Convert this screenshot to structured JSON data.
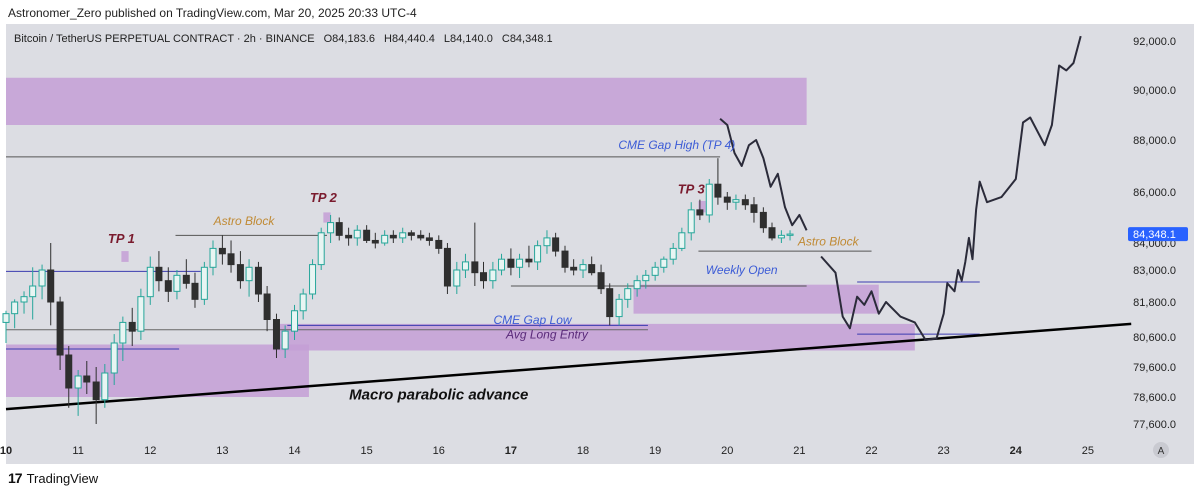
{
  "header": {
    "published": "Astronomer_Zero published on TradingView.com, Mar 20, 2025 20:33 UTC-4"
  },
  "footer": {
    "logo_mark": "17",
    "brand": "TradingView"
  },
  "colors": {
    "background": "#dcdde3",
    "zone": "#c49fd6",
    "up": "#26a69a",
    "down": "#2f2f2f",
    "label_blue": "#3b5bd6",
    "label_orange": "#c08a34",
    "tp_label": "#7a1b2e",
    "price_tag": "#2962ff"
  },
  "chart_data": {
    "type": "candlestick",
    "symbol_line": "Bitcoin / TetherUS PERPETUAL CONTRACT · 2h · BINANCE",
    "ohlc": {
      "open": "O84,183.6",
      "high": "H84,440.4",
      "low": "L84,140.0",
      "close": "C84,348.1"
    },
    "last_price": "84,348.1",
    "y_ticks": [
      "92,000.0",
      "90,000.0",
      "88,000.0",
      "86,000.0",
      "84,000.0",
      "83,000.0",
      "81,800.0",
      "80,600.0",
      "79,600.0",
      "78,600.0",
      "77,600.0"
    ],
    "x_ticks": [
      "10",
      "11",
      "12",
      "13",
      "14",
      "15",
      "16",
      "17",
      "18",
      "19",
      "20",
      "21",
      "22",
      "23",
      "24",
      "25"
    ],
    "corner_button": "A",
    "ylim": [
      77000,
      92500
    ],
    "xlim": [
      10,
      25.5
    ],
    "zones": [
      {
        "x0": 10.0,
        "x1": 21.1,
        "y0": 88600,
        "y1": 90500
      },
      {
        "x0": 10.0,
        "x1": 14.2,
        "y0": 78600,
        "y1": 80350
      },
      {
        "x0": 13.7,
        "x1": 22.6,
        "y0": 80150,
        "y1": 81050
      },
      {
        "x0": 18.7,
        "x1": 22.1,
        "y0": 81400,
        "y1": 82450
      },
      {
        "x0": 11.6,
        "x1": 11.7,
        "y0": 83300,
        "y1": 83700
      },
      {
        "x0": 14.4,
        "x1": 14.5,
        "y0": 84800,
        "y1": 85200
      },
      {
        "x0": 19.6,
        "x1": 19.7,
        "y0": 85200,
        "y1": 85650
      }
    ],
    "levels": [
      {
        "x0": 10.0,
        "x1": 19.9,
        "y": 87350,
        "color": "#555555"
      },
      {
        "x0": 12.35,
        "x1": 14.45,
        "y": 84300,
        "color": "#555555"
      },
      {
        "x0": 10.0,
        "x1": 12.7,
        "y": 82950,
        "color": "#3b3bb0"
      },
      {
        "x0": 10.0,
        "x1": 12.4,
        "y": 80200,
        "color": "#3b3bb0"
      },
      {
        "x0": 10.0,
        "x1": 18.9,
        "y": 80850,
        "color": "#666666"
      },
      {
        "x0": 13.9,
        "x1": 18.9,
        "y": 81000,
        "color": "#3b3bb0"
      },
      {
        "x0": 17.0,
        "x1": 21.1,
        "y": 82400,
        "color": "#555555"
      },
      {
        "x0": 19.6,
        "x1": 22.0,
        "y": 83700,
        "color": "#555555"
      },
      {
        "x0": 21.8,
        "x1": 23.5,
        "y": 82550,
        "color": "#3b3bb0"
      },
      {
        "x0": 21.8,
        "x1": 23.5,
        "y": 80700,
        "color": "#3b3bb0"
      }
    ],
    "trendline": {
      "x0": 10.0,
      "y0": 78150,
      "x1": 25.6,
      "y1": 81050
    },
    "annotations": [
      {
        "text": "TP 1",
        "x": 11.6,
        "y": 84000,
        "style": "tp"
      },
      {
        "text": "TP 2",
        "x": 14.4,
        "y": 85600,
        "style": "tp"
      },
      {
        "text": "TP 3",
        "x": 19.5,
        "y": 85950,
        "style": "tp"
      },
      {
        "text": "Astro Block",
        "x": 13.3,
        "y": 84700,
        "style": "orange"
      },
      {
        "text": "CME Gap High (TP 4)",
        "x": 19.3,
        "y": 87650,
        "style": "blue"
      },
      {
        "text": "Astro Block",
        "x": 21.4,
        "y": 83900,
        "style": "orange"
      },
      {
        "text": "Weekly Open",
        "x": 20.2,
        "y": 82850,
        "style": "blue"
      },
      {
        "text": "CME Gap Low",
        "x": 17.3,
        "y": 81050,
        "style": "blue"
      },
      {
        "text": "Avg Long Entry",
        "x": 17.5,
        "y": 80550,
        "style": "purple"
      },
      {
        "text": "Macro parabolic advance",
        "x": 16.0,
        "y": 78500,
        "style": "bold"
      }
    ],
    "projection": [
      [
        19.9,
        88850
      ],
      [
        20.0,
        88600
      ],
      [
        20.1,
        87500
      ],
      [
        20.2,
        87000
      ],
      [
        20.3,
        87800
      ],
      [
        20.4,
        88000
      ],
      [
        20.5,
        87300
      ],
      [
        20.6,
        86200
      ],
      [
        20.7,
        86700
      ],
      [
        20.8,
        85400
      ],
      [
        20.9,
        84700
      ],
      [
        21.0,
        85100
      ],
      [
        21.1,
        84500
      ]
    ],
    "projection2": [
      [
        21.3,
        83500
      ],
      [
        21.5,
        82900
      ],
      [
        21.6,
        81300
      ],
      [
        21.7,
        80900
      ],
      [
        21.8,
        82000
      ],
      [
        21.9,
        81700
      ],
      [
        22.0,
        82200
      ],
      [
        22.1,
        81400
      ],
      [
        22.2,
        81800
      ],
      [
        22.4,
        81300
      ],
      [
        22.6,
        81100
      ],
      [
        22.75,
        80500
      ],
      [
        22.9,
        80550
      ],
      [
        23.0,
        81400
      ],
      [
        23.05,
        82500
      ],
      [
        23.15,
        82200
      ],
      [
        23.2,
        83000
      ],
      [
        23.25,
        82600
      ],
      [
        23.3,
        83300
      ],
      [
        23.35,
        84200
      ],
      [
        23.4,
        83400
      ],
      [
        23.45,
        85300
      ],
      [
        23.5,
        86400
      ],
      [
        23.6,
        85600
      ],
      [
        23.8,
        85800
      ],
      [
        24.0,
        86500
      ],
      [
        24.1,
        88700
      ],
      [
        24.2,
        88900
      ],
      [
        24.4,
        87800
      ],
      [
        24.5,
        88600
      ],
      [
        24.6,
        91000
      ],
      [
        24.7,
        90800
      ],
      [
        24.8,
        91100
      ],
      [
        24.9,
        92200
      ]
    ],
    "candles": [
      {
        "t": 10.0,
        "o": 81100,
        "h": 81500,
        "l": 80400,
        "c": 81400
      },
      {
        "t": 10.12,
        "o": 81400,
        "h": 81900,
        "l": 80900,
        "c": 81800
      },
      {
        "t": 10.25,
        "o": 81800,
        "h": 82200,
        "l": 81400,
        "c": 82000
      },
      {
        "t": 10.37,
        "o": 82000,
        "h": 83100,
        "l": 81200,
        "c": 82400
      },
      {
        "t": 10.5,
        "o": 82400,
        "h": 83200,
        "l": 81900,
        "c": 83000
      },
      {
        "t": 10.62,
        "o": 83000,
        "h": 84000,
        "l": 81000,
        "c": 81800
      },
      {
        "t": 10.75,
        "o": 81800,
        "h": 82000,
        "l": 79500,
        "c": 80000
      },
      {
        "t": 10.87,
        "o": 80000,
        "h": 80300,
        "l": 78200,
        "c": 78900
      },
      {
        "t": 11.0,
        "o": 78900,
        "h": 79500,
        "l": 77900,
        "c": 79300
      },
      {
        "t": 11.12,
        "o": 79300,
        "h": 79800,
        "l": 78700,
        "c": 79100
      },
      {
        "t": 11.25,
        "o": 79100,
        "h": 79600,
        "l": 77600,
        "c": 78500
      },
      {
        "t": 11.37,
        "o": 78500,
        "h": 79700,
        "l": 78200,
        "c": 79400
      },
      {
        "t": 11.5,
        "o": 79400,
        "h": 80700,
        "l": 79000,
        "c": 80400
      },
      {
        "t": 11.62,
        "o": 80400,
        "h": 81300,
        "l": 79800,
        "c": 81100
      },
      {
        "t": 11.75,
        "o": 81100,
        "h": 81600,
        "l": 80300,
        "c": 80800
      },
      {
        "t": 11.87,
        "o": 80800,
        "h": 82300,
        "l": 80500,
        "c": 82000
      },
      {
        "t": 12.0,
        "o": 82000,
        "h": 83500,
        "l": 81700,
        "c": 83100
      },
      {
        "t": 12.12,
        "o": 83100,
        "h": 83700,
        "l": 82200,
        "c": 82600
      },
      {
        "t": 12.25,
        "o": 82600,
        "h": 83100,
        "l": 81800,
        "c": 82200
      },
      {
        "t": 12.37,
        "o": 82200,
        "h": 83000,
        "l": 81900,
        "c": 82800
      },
      {
        "t": 12.5,
        "o": 82800,
        "h": 83400,
        "l": 82300,
        "c": 82500
      },
      {
        "t": 12.62,
        "o": 82500,
        "h": 82900,
        "l": 81600,
        "c": 81900
      },
      {
        "t": 12.75,
        "o": 81900,
        "h": 83300,
        "l": 81700,
        "c": 83100
      },
      {
        "t": 12.87,
        "o": 83100,
        "h": 84100,
        "l": 82800,
        "c": 83800
      },
      {
        "t": 13.0,
        "o": 83800,
        "h": 84300,
        "l": 83200,
        "c": 83600
      },
      {
        "t": 13.12,
        "o": 83600,
        "h": 84100,
        "l": 82900,
        "c": 83200
      },
      {
        "t": 13.25,
        "o": 83200,
        "h": 83700,
        "l": 82300,
        "c": 82600
      },
      {
        "t": 13.37,
        "o": 82600,
        "h": 83400,
        "l": 82000,
        "c": 83100
      },
      {
        "t": 13.5,
        "o": 83100,
        "h": 83300,
        "l": 81800,
        "c": 82100
      },
      {
        "t": 13.62,
        "o": 82100,
        "h": 82400,
        "l": 80800,
        "c": 81200
      },
      {
        "t": 13.75,
        "o": 81200,
        "h": 81400,
        "l": 79900,
        "c": 80200
      },
      {
        "t": 13.87,
        "o": 80200,
        "h": 81000,
        "l": 79900,
        "c": 80800
      },
      {
        "t": 14.0,
        "o": 80800,
        "h": 81700,
        "l": 80500,
        "c": 81500
      },
      {
        "t": 14.12,
        "o": 81500,
        "h": 82300,
        "l": 81200,
        "c": 82100
      },
      {
        "t": 14.25,
        "o": 82100,
        "h": 83400,
        "l": 81900,
        "c": 83200
      },
      {
        "t": 14.37,
        "o": 83200,
        "h": 84600,
        "l": 83000,
        "c": 84400
      },
      {
        "t": 14.5,
        "o": 84400,
        "h": 85100,
        "l": 84000,
        "c": 84800
      },
      {
        "t": 14.62,
        "o": 84800,
        "h": 85000,
        "l": 84100,
        "c": 84300
      },
      {
        "t": 14.75,
        "o": 84300,
        "h": 84600,
        "l": 83900,
        "c": 84200
      },
      {
        "t": 14.87,
        "o": 84200,
        "h": 84700,
        "l": 83900,
        "c": 84500
      },
      {
        "t": 15.0,
        "o": 84500,
        "h": 84700,
        "l": 84000,
        "c": 84100
      },
      {
        "t": 15.12,
        "o": 84100,
        "h": 84400,
        "l": 83800,
        "c": 84000
      },
      {
        "t": 15.25,
        "o": 84000,
        "h": 84500,
        "l": 83900,
        "c": 84300
      },
      {
        "t": 15.37,
        "o": 84300,
        "h": 84500,
        "l": 84000,
        "c": 84200
      },
      {
        "t": 15.5,
        "o": 84200,
        "h": 84600,
        "l": 84000,
        "c": 84400
      },
      {
        "t": 15.62,
        "o": 84400,
        "h": 84500,
        "l": 84100,
        "c": 84300
      },
      {
        "t": 15.75,
        "o": 84300,
        "h": 84500,
        "l": 84100,
        "c": 84200
      },
      {
        "t": 15.87,
        "o": 84200,
        "h": 84400,
        "l": 83900,
        "c": 84100
      },
      {
        "t": 16.0,
        "o": 84100,
        "h": 84300,
        "l": 83600,
        "c": 83800
      },
      {
        "t": 16.12,
        "o": 83800,
        "h": 84000,
        "l": 82100,
        "c": 82400
      },
      {
        "t": 16.25,
        "o": 82400,
        "h": 83300,
        "l": 82100,
        "c": 83000
      },
      {
        "t": 16.37,
        "o": 83000,
        "h": 83600,
        "l": 82700,
        "c": 83300
      },
      {
        "t": 16.5,
        "o": 83300,
        "h": 84800,
        "l": 82400,
        "c": 82900
      },
      {
        "t": 16.62,
        "o": 82900,
        "h": 83300,
        "l": 82300,
        "c": 82600
      },
      {
        "t": 16.75,
        "o": 82600,
        "h": 83300,
        "l": 82300,
        "c": 83000
      },
      {
        "t": 16.87,
        "o": 83000,
        "h": 83600,
        "l": 82800,
        "c": 83400
      },
      {
        "t": 17.0,
        "o": 83400,
        "h": 83800,
        "l": 82800,
        "c": 83100
      },
      {
        "t": 17.12,
        "o": 83100,
        "h": 83600,
        "l": 82700,
        "c": 83400
      },
      {
        "t": 17.25,
        "o": 83400,
        "h": 83900,
        "l": 83100,
        "c": 83300
      },
      {
        "t": 17.37,
        "o": 83300,
        "h": 84100,
        "l": 83000,
        "c": 83900
      },
      {
        "t": 17.5,
        "o": 83900,
        "h": 84500,
        "l": 83600,
        "c": 84200
      },
      {
        "t": 17.62,
        "o": 84200,
        "h": 84400,
        "l": 83500,
        "c": 83700
      },
      {
        "t": 17.75,
        "o": 83700,
        "h": 83900,
        "l": 82900,
        "c": 83100
      },
      {
        "t": 17.87,
        "o": 83100,
        "h": 83400,
        "l": 82800,
        "c": 83000
      },
      {
        "t": 18.0,
        "o": 83000,
        "h": 83400,
        "l": 82700,
        "c": 83200
      },
      {
        "t": 18.12,
        "o": 83200,
        "h": 83500,
        "l": 82800,
        "c": 82900
      },
      {
        "t": 18.25,
        "o": 82900,
        "h": 83200,
        "l": 82100,
        "c": 82300
      },
      {
        "t": 18.37,
        "o": 82300,
        "h": 82500,
        "l": 81000,
        "c": 81300
      },
      {
        "t": 18.5,
        "o": 81300,
        "h": 82100,
        "l": 81000,
        "c": 81900
      },
      {
        "t": 18.62,
        "o": 81900,
        "h": 82500,
        "l": 81600,
        "c": 82300
      },
      {
        "t": 18.75,
        "o": 82300,
        "h": 82800,
        "l": 82000,
        "c": 82600
      },
      {
        "t": 18.87,
        "o": 82600,
        "h": 83000,
        "l": 82300,
        "c": 82800
      },
      {
        "t": 19.0,
        "o": 82800,
        "h": 83300,
        "l": 82600,
        "c": 83100
      },
      {
        "t": 19.12,
        "o": 83100,
        "h": 83500,
        "l": 82900,
        "c": 83400
      },
      {
        "t": 19.25,
        "o": 83400,
        "h": 84000,
        "l": 83200,
        "c": 83800
      },
      {
        "t": 19.37,
        "o": 83800,
        "h": 84600,
        "l": 83700,
        "c": 84400
      },
      {
        "t": 19.5,
        "o": 84400,
        "h": 85600,
        "l": 84100,
        "c": 85300
      },
      {
        "t": 19.62,
        "o": 85300,
        "h": 85700,
        "l": 84900,
        "c": 85100
      },
      {
        "t": 19.75,
        "o": 85100,
        "h": 86500,
        "l": 84800,
        "c": 86300
      },
      {
        "t": 19.87,
        "o": 86300,
        "h": 87300,
        "l": 85500,
        "c": 85800
      },
      {
        "t": 20.0,
        "o": 85800,
        "h": 86000,
        "l": 85300,
        "c": 85600
      },
      {
        "t": 20.12,
        "o": 85600,
        "h": 85900,
        "l": 85300,
        "c": 85700
      },
      {
        "t": 20.25,
        "o": 85700,
        "h": 85900,
        "l": 85300,
        "c": 85500
      },
      {
        "t": 20.37,
        "o": 85500,
        "h": 85800,
        "l": 84800,
        "c": 85200
      },
      {
        "t": 20.5,
        "o": 85200,
        "h": 85400,
        "l": 84400,
        "c": 84600
      },
      {
        "t": 20.62,
        "o": 84600,
        "h": 84800,
        "l": 84100,
        "c": 84200
      },
      {
        "t": 20.75,
        "o": 84200,
        "h": 84500,
        "l": 84000,
        "c": 84300
      },
      {
        "t": 20.87,
        "o": 84300,
        "h": 84500,
        "l": 84100,
        "c": 84350
      }
    ]
  }
}
